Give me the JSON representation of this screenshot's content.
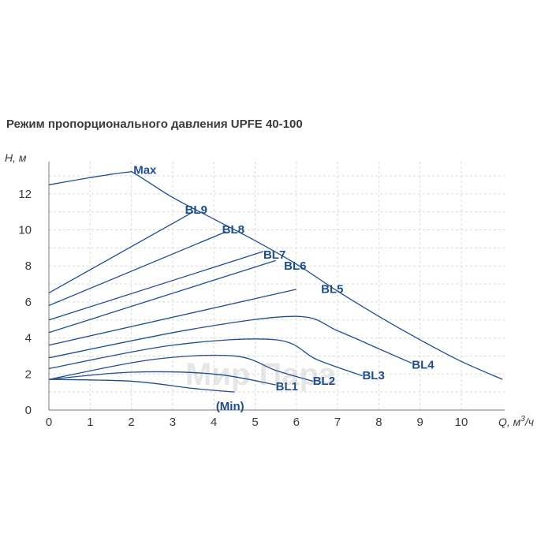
{
  "chart_data": {
    "type": "line",
    "title": "Режим пропорционального давления UPFE 40-100",
    "ylabel": "H, м",
    "xlabel_main": "Q, м",
    "xlabel_sup": "3",
    "xlabel_tail": "/ч",
    "xlim": [
      0,
      11
    ],
    "ylim": [
      0,
      14
    ],
    "x_ticks": [
      0,
      1,
      2,
      3,
      4,
      5,
      6,
      7,
      8,
      9,
      10
    ],
    "y_ticks": [
      0,
      2,
      4,
      6,
      8,
      10,
      12
    ],
    "grid": true,
    "series": [
      {
        "name": "Max",
        "label_at": [
          2.05,
          13.1
        ],
        "points": [
          [
            0,
            12.5
          ],
          [
            1,
            12.9
          ],
          [
            1.9,
            13.2
          ],
          [
            2.1,
            13.1
          ],
          [
            3,
            11.8
          ],
          [
            4,
            10.6
          ],
          [
            5,
            9.4
          ],
          [
            6,
            8.1
          ],
          [
            7,
            6.6
          ],
          [
            8,
            5.2
          ],
          [
            9,
            3.9
          ],
          [
            10,
            2.7
          ],
          [
            11,
            1.7
          ]
        ]
      },
      {
        "name": "BL9",
        "label_at": [
          3.3,
          10.9
        ],
        "points": [
          [
            0,
            6.5
          ],
          [
            3.5,
            11.0
          ]
        ]
      },
      {
        "name": "BL8",
        "label_at": [
          4.2,
          9.8
        ],
        "points": [
          [
            0,
            5.8
          ],
          [
            4.3,
            9.9
          ]
        ]
      },
      {
        "name": "BL7",
        "label_at": [
          5.2,
          8.4
        ],
        "points": [
          [
            0,
            5.0
          ],
          [
            5.2,
            8.8
          ]
        ]
      },
      {
        "name": "BL6",
        "label_at": [
          5.7,
          7.8
        ],
        "points": [
          [
            0,
            4.3
          ],
          [
            5.5,
            8.3
          ]
        ]
      },
      {
        "name": "BL5",
        "label_at": [
          6.6,
          6.5
        ],
        "points": [
          [
            0,
            3.6
          ],
          [
            6.0,
            6.7
          ]
        ]
      },
      {
        "name": "BL4",
        "label_at": [
          8.8,
          2.3
        ],
        "points": [
          [
            0,
            2.9
          ],
          [
            3.5,
            4.5
          ],
          [
            6.0,
            5.2
          ],
          [
            7.0,
            4.4
          ],
          [
            8.0,
            3.4
          ],
          [
            8.8,
            2.6
          ]
        ]
      },
      {
        "name": "BL3",
        "label_at": [
          7.6,
          1.7
        ],
        "points": [
          [
            0,
            2.3
          ],
          [
            3.0,
            3.6
          ],
          [
            5.5,
            3.9
          ],
          [
            6.5,
            2.8
          ],
          [
            7.6,
            1.9
          ]
        ]
      },
      {
        "name": "BL2",
        "label_at": [
          6.4,
          1.4
        ],
        "points": [
          [
            0,
            1.7
          ],
          [
            2.5,
            2.8
          ],
          [
            4.5,
            3.0
          ],
          [
            5.5,
            2.2
          ],
          [
            6.4,
            1.6
          ]
        ]
      },
      {
        "name": "BL1",
        "label_at": [
          5.5,
          1.1
        ],
        "points": [
          [
            0,
            1.7
          ],
          [
            2.0,
            2.1
          ],
          [
            4.0,
            2.0
          ],
          [
            5.5,
            1.4
          ]
        ]
      },
      {
        "name": "(Min)",
        "label_at": [
          4.05,
          0.0
        ],
        "points": [
          [
            0,
            1.7
          ],
          [
            2.0,
            1.6
          ],
          [
            3.5,
            1.2
          ],
          [
            4.5,
            1.0
          ]
        ]
      }
    ]
  },
  "watermark": {
    "text": "Мир Пара"
  },
  "colors": {
    "curve": "#1f4e8f",
    "grid": "#d9d9d9",
    "text": "#3a3a3a"
  }
}
